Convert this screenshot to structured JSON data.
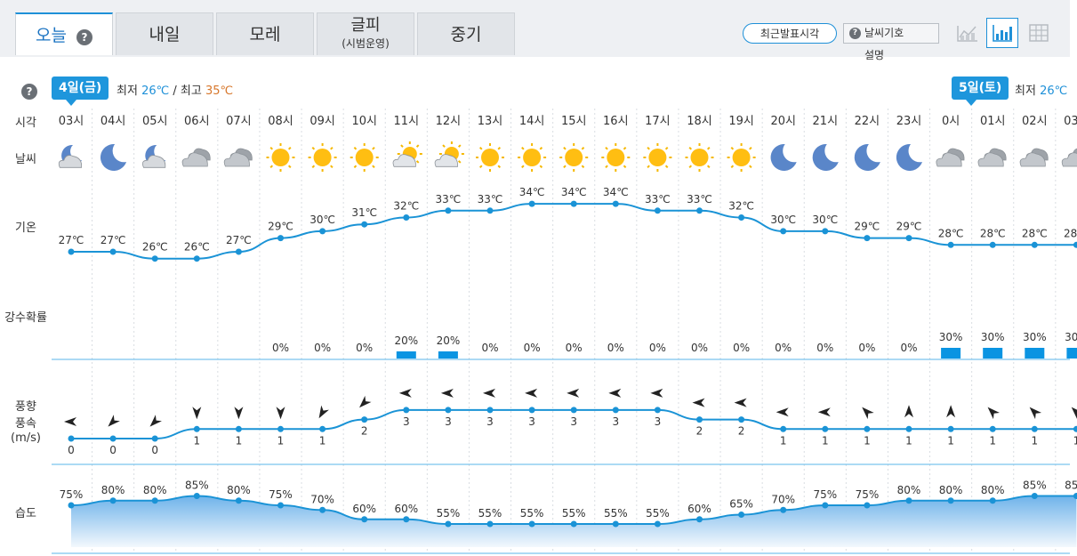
{
  "tabs": [
    {
      "label": "오늘",
      "active": true,
      "help": "?"
    },
    {
      "label": "내일"
    },
    {
      "label": "모레"
    },
    {
      "label": "글피",
      "sub": "(시범운영)"
    },
    {
      "label": "중기"
    }
  ],
  "toolbar": {
    "recent_label": "최근발표시각",
    "legend_label": "날씨기호",
    "legend_help": "?",
    "legend_sub": "설명",
    "views": [
      "line-chart-view-icon",
      "bar-chart-view-icon",
      "table-view-icon"
    ],
    "selected_view": "bar-chart-view-icon"
  },
  "day_help": "?",
  "days": [
    {
      "badge": "4일(금)",
      "min_label": "최저",
      "min": "26℃",
      "sep": "/",
      "max_label": "최고",
      "max": "35℃"
    },
    {
      "badge": "5일(토)",
      "min_label": "최저",
      "min": "26℃"
    }
  ],
  "row_labels": {
    "time": "시각",
    "weather": "날씨",
    "temp": "기온",
    "precip": "강수확률",
    "wind_dir": "풍향",
    "wind_speed": "풍속",
    "wind_unit": "(m/s)",
    "humidity": "습도"
  },
  "colors": {
    "accent": "#1e90d8",
    "line": "#1a93d6",
    "bar": "#0a94e2",
    "max_temp": "#d7762a"
  },
  "chart_data": {
    "type": "line",
    "hours": [
      "03시",
      "04시",
      "05시",
      "06시",
      "07시",
      "08시",
      "09시",
      "10시",
      "11시",
      "12시",
      "13시",
      "14시",
      "15시",
      "16시",
      "17시",
      "18시",
      "19시",
      "20시",
      "21시",
      "22시",
      "23시",
      "0시",
      "01시",
      "02시",
      "03시"
    ],
    "weather_icons": [
      "partly-cloudy-night-icon",
      "moon-icon",
      "partly-cloudy-night-icon",
      "cloudy-icon",
      "cloudy-icon",
      "sun-icon",
      "sun-icon",
      "sun-icon",
      "partly-cloudy-day-icon",
      "partly-cloudy-day-icon",
      "sun-icon",
      "sun-icon",
      "sun-icon",
      "sun-icon",
      "sun-icon",
      "sun-icon",
      "sun-icon",
      "moon-icon",
      "moon-icon",
      "moon-icon",
      "moon-icon",
      "cloudy-icon",
      "cloudy-icon",
      "cloudy-icon",
      "cloudy-icon"
    ],
    "temperature_unit": "℃",
    "temperature": [
      27,
      27,
      26,
      26,
      27,
      29,
      30,
      31,
      32,
      33,
      33,
      34,
      34,
      34,
      33,
      33,
      32,
      30,
      30,
      29,
      29,
      28,
      28,
      28,
      28
    ],
    "precip_prob": [
      null,
      null,
      null,
      null,
      null,
      0,
      0,
      0,
      20,
      20,
      0,
      0,
      0,
      0,
      0,
      0,
      0,
      0,
      0,
      0,
      0,
      30,
      30,
      30,
      30
    ],
    "wind_speed": [
      0,
      0,
      0,
      1,
      1,
      1,
      1,
      2,
      3,
      3,
      3,
      3,
      3,
      3,
      3,
      2,
      2,
      1,
      1,
      1,
      1,
      1,
      1,
      1,
      1
    ],
    "wind_dir_deg": [
      270,
      225,
      225,
      180,
      180,
      180,
      210,
      225,
      270,
      270,
      270,
      270,
      270,
      270,
      270,
      270,
      270,
      270,
      270,
      315,
      0,
      0,
      315,
      315,
      315
    ],
    "humidity": [
      75,
      80,
      80,
      85,
      80,
      75,
      70,
      60,
      60,
      55,
      55,
      55,
      55,
      55,
      55,
      60,
      65,
      70,
      75,
      75,
      80,
      80,
      80,
      85,
      85
    ]
  }
}
